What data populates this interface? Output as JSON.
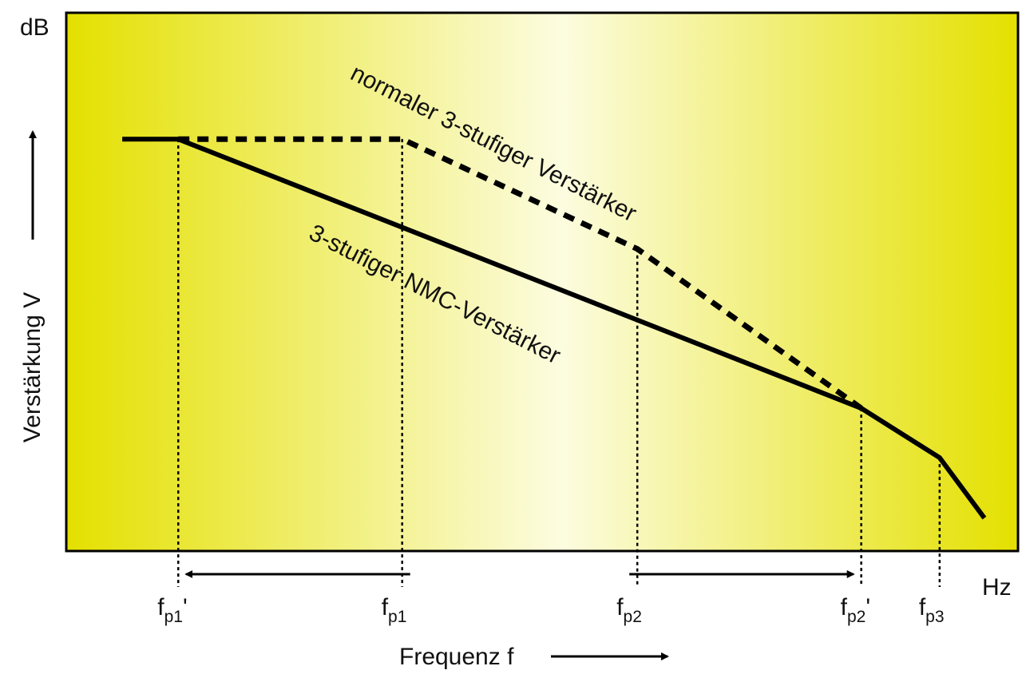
{
  "chart_data": {
    "type": "line",
    "title": "",
    "xlabel": "Frequenz f",
    "ylabel": "Verstärkung V",
    "x_unit": "Hz",
    "y_unit": "dB",
    "x_scale": "log",
    "grid": false,
    "x_ticks": [
      {
        "id": "fp1_prime",
        "main": "f",
        "sub": "p1",
        "suffix": "'",
        "x": 1
      },
      {
        "id": "fp1",
        "main": "f",
        "sub": "p1",
        "suffix": "",
        "x": 3
      },
      {
        "id": "fp2",
        "main": "f",
        "sub": "p2",
        "suffix": "",
        "x": 5.1
      },
      {
        "id": "fp2_prime",
        "main": "f",
        "sub": "p2",
        "suffix": "'",
        "x": 7.1
      },
      {
        "id": "fp3",
        "main": "f",
        "sub": "p3",
        "suffix": "",
        "x": 7.8
      }
    ],
    "series": [
      {
        "name": "3-stufiger NMC-Verstärker",
        "style": "solid",
        "points": [
          [
            0.5,
            6.5
          ],
          [
            1,
            6.5
          ],
          [
            7.1,
            1.6
          ],
          [
            7.8,
            0.7
          ],
          [
            8.2,
            -0.4
          ]
        ]
      },
      {
        "name": "normaler 3-stufiger Verstärker",
        "style": "dashed",
        "points": [
          [
            1,
            6.5
          ],
          [
            3,
            6.5
          ],
          [
            5.1,
            4.5
          ],
          [
            7.1,
            1.6
          ]
        ]
      }
    ],
    "shift_arrows": [
      {
        "from": 3,
        "to": 1
      },
      {
        "from": 5.1,
        "to": 7.1
      }
    ],
    "colors": {
      "plot_edge": "#e4e000",
      "plot_center": "#fcfce0",
      "line": "#000000"
    }
  }
}
